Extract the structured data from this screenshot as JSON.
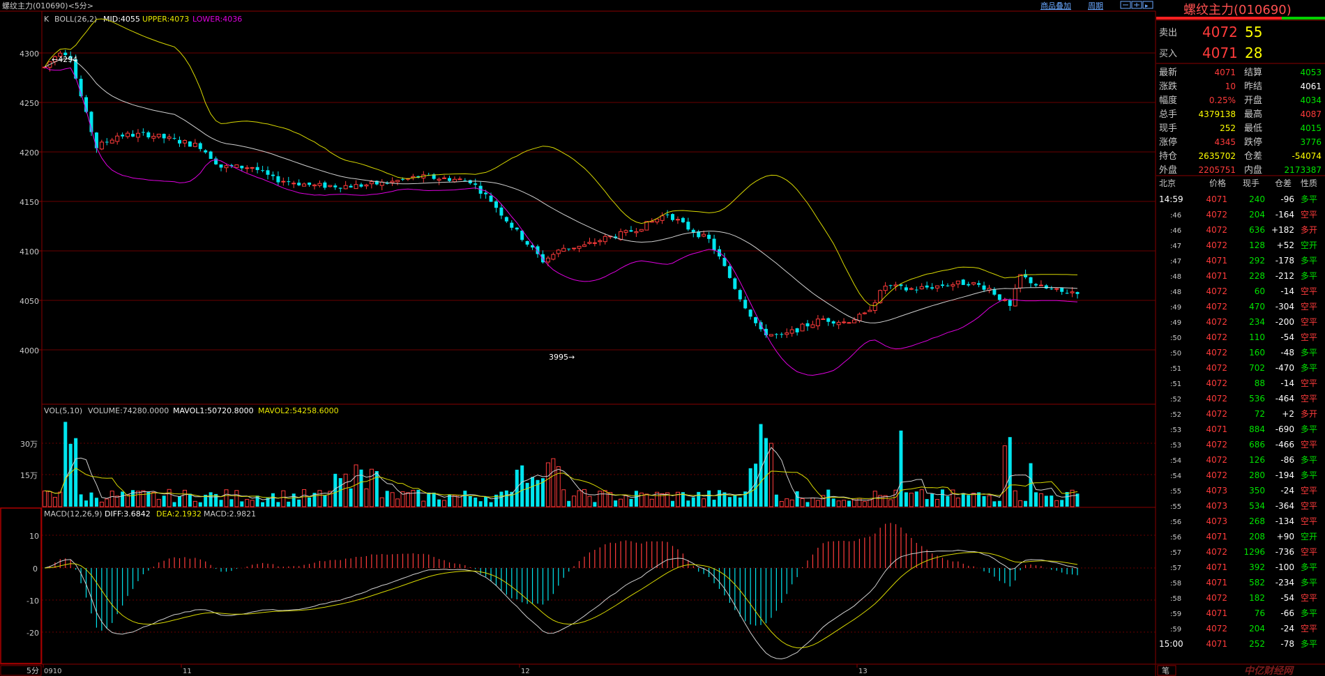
{
  "header": {
    "title": "螺纹主力(010690)<5分>",
    "btn_overlay": "商品叠加",
    "btn_period": "周期"
  },
  "colors": {
    "up": "#ff3b3b",
    "down": "#00e5ee",
    "upper": "#d8d800",
    "mid": "#d0d0d0",
    "lower": "#e000e0",
    "grid": "#6a0000",
    "yellow": "#ffff00",
    "green": "#00e400",
    "panel_border": "#8a0000"
  },
  "kline_panel": {
    "indicator_name": "K",
    "boll_name": "BOLL(26,2)",
    "mid": "MID:4055",
    "upper": "UPPER:4073",
    "lower": "LOWER:4036",
    "max_label": "4294",
    "min_label": "3995",
    "y_ticks": [
      "4300",
      "4250",
      "4200",
      "4150",
      "4100",
      "4050",
      "4000"
    ]
  },
  "vol_panel": {
    "name": "VOL(5,10)",
    "volume": "VOLUME:74280.0000",
    "mavol1": "MAVOL1:50720.8000",
    "mavol2": "MAVOL2:54258.6000",
    "y_ticks": [
      "30万",
      "15万"
    ]
  },
  "macd_panel": {
    "name": "MACD(12,26,9)",
    "diff": "DIFF:3.6842",
    "dea": "DEA:2.1932",
    "macd": "MACD:2.9821",
    "y_ticks": [
      "10",
      "0",
      "-10",
      "-20"
    ]
  },
  "x_axis": {
    "period_label": "5分",
    "labels": [
      "0910",
      "11",
      "12",
      "13"
    ]
  },
  "chart_data": {
    "type": "candlestick",
    "title": "螺纹主力(010690)<5分>",
    "kline": {
      "ylim": [
        3960,
        4330
      ],
      "high": 4294,
      "low": 3995
    },
    "boll": {
      "period": "26,2",
      "mid": 4055,
      "upper": 4073,
      "lower": 4036
    },
    "vol": {
      "volume": 74280.0,
      "mavol1": 50720.8,
      "mavol2": 54258.6
    },
    "macd": {
      "diff": 3.6842,
      "dea": 2.1932,
      "macd": 2.9821
    }
  },
  "quote": {
    "title": "螺纹主力(010690)",
    "sell_label": "卖出",
    "sell_price": "4072",
    "sell_vol": "55",
    "buy_label": "买入",
    "buy_price": "4071",
    "buy_vol": "28",
    "rows": [
      {
        "l1": "最新",
        "v1": "4071",
        "c1": "#ff3b3b",
        "l2": "结算",
        "v2": "4053",
        "c2": "#00e400"
      },
      {
        "l1": "涨跌",
        "v1": "10",
        "c1": "#ff3b3b",
        "l2": "昨结",
        "v2": "4061",
        "c2": "#ffffff"
      },
      {
        "l1": "幅度",
        "v1": "0.25%",
        "c1": "#ff3b3b",
        "l2": "开盘",
        "v2": "4034",
        "c2": "#00e400"
      },
      {
        "l1": "总手",
        "v1": "4379138",
        "c1": "#ffff00",
        "l2": "最高",
        "v2": "4087",
        "c2": "#ff3b3b"
      },
      {
        "l1": "现手",
        "v1": "252",
        "c1": "#ffff00",
        "l2": "最低",
        "v2": "4015",
        "c2": "#00e400"
      },
      {
        "l1": "涨停",
        "v1": "4345",
        "c1": "#ff3b3b",
        "l2": "跌停",
        "v2": "3776",
        "c2": "#00e400"
      },
      {
        "l1": "持仓",
        "v1": "2635702",
        "c1": "#ffff00",
        "l2": "仓差",
        "v2": "-54074",
        "c2": "#ffff00"
      },
      {
        "l1": "外盘",
        "v1": "2205751",
        "c1": "#ff3b3b",
        "l2": "内盘",
        "v2": "2173387",
        "c2": "#00e400"
      }
    ],
    "tick_header": {
      "time": "北京",
      "price": "价格",
      "vol": "现手",
      "oi": "仓差",
      "nature": "性质"
    },
    "ticks": [
      {
        "t": "14:59",
        "p": "4071",
        "v": "240",
        "o": "-96",
        "n": "多平",
        "nc": "#00e400"
      },
      {
        "t": ":46",
        "p": "4072",
        "v": "204",
        "o": "-164",
        "n": "空平",
        "nc": "#ff3b3b"
      },
      {
        "t": ":46",
        "p": "4072",
        "v": "636",
        "o": "+182",
        "n": "多开",
        "nc": "#ff3b3b"
      },
      {
        "t": ":47",
        "p": "4072",
        "v": "128",
        "o": "+52",
        "n": "空开",
        "nc": "#00e400"
      },
      {
        "t": ":47",
        "p": "4071",
        "v": "292",
        "o": "-178",
        "n": "多平",
        "nc": "#00e400"
      },
      {
        "t": ":48",
        "p": "4071",
        "v": "228",
        "o": "-212",
        "n": "多平",
        "nc": "#00e400"
      },
      {
        "t": ":48",
        "p": "4072",
        "v": "60",
        "o": "-14",
        "n": "空平",
        "nc": "#ff3b3b"
      },
      {
        "t": ":49",
        "p": "4072",
        "v": "470",
        "o": "-304",
        "n": "空平",
        "nc": "#ff3b3b"
      },
      {
        "t": ":49",
        "p": "4072",
        "v": "234",
        "o": "-200",
        "n": "空平",
        "nc": "#ff3b3b"
      },
      {
        "t": ":50",
        "p": "4072",
        "v": "110",
        "o": "-54",
        "n": "空平",
        "nc": "#ff3b3b"
      },
      {
        "t": ":50",
        "p": "4072",
        "v": "160",
        "o": "-48",
        "n": "多平",
        "nc": "#00e400"
      },
      {
        "t": ":51",
        "p": "4072",
        "v": "702",
        "o": "-470",
        "n": "多平",
        "nc": "#00e400"
      },
      {
        "t": ":51",
        "p": "4072",
        "v": "88",
        "o": "-14",
        "n": "空平",
        "nc": "#ff3b3b"
      },
      {
        "t": ":52",
        "p": "4072",
        "v": "536",
        "o": "-464",
        "n": "空平",
        "nc": "#ff3b3b"
      },
      {
        "t": ":52",
        "p": "4072",
        "v": "72",
        "o": "+2",
        "n": "多开",
        "nc": "#ff3b3b"
      },
      {
        "t": ":53",
        "p": "4071",
        "v": "884",
        "o": "-690",
        "n": "多平",
        "nc": "#00e400"
      },
      {
        "t": ":53",
        "p": "4072",
        "v": "686",
        "o": "-466",
        "n": "空平",
        "nc": "#ff3b3b"
      },
      {
        "t": ":54",
        "p": "4072",
        "v": "126",
        "o": "-86",
        "n": "多平",
        "nc": "#00e400"
      },
      {
        "t": ":54",
        "p": "4072",
        "v": "280",
        "o": "-194",
        "n": "多平",
        "nc": "#00e400"
      },
      {
        "t": ":55",
        "p": "4073",
        "v": "350",
        "o": "-24",
        "n": "空平",
        "nc": "#ff3b3b"
      },
      {
        "t": ":55",
        "p": "4073",
        "v": "534",
        "o": "-364",
        "n": "空平",
        "nc": "#ff3b3b"
      },
      {
        "t": ":56",
        "p": "4073",
        "v": "268",
        "o": "-134",
        "n": "空平",
        "nc": "#ff3b3b"
      },
      {
        "t": ":56",
        "p": "4071",
        "v": "208",
        "o": "+90",
        "n": "空开",
        "nc": "#00e400"
      },
      {
        "t": ":57",
        "p": "4072",
        "v": "1296",
        "o": "-736",
        "n": "空平",
        "nc": "#ff3b3b"
      },
      {
        "t": ":57",
        "p": "4071",
        "v": "392",
        "o": "-100",
        "n": "多平",
        "nc": "#00e400"
      },
      {
        "t": ":58",
        "p": "4071",
        "v": "582",
        "o": "-234",
        "n": "多平",
        "nc": "#00e400"
      },
      {
        "t": ":58",
        "p": "4072",
        "v": "182",
        "o": "-54",
        "n": "空平",
        "nc": "#ff3b3b"
      },
      {
        "t": ":59",
        "p": "4071",
        "v": "76",
        "o": "-66",
        "n": "多平",
        "nc": "#00e400"
      },
      {
        "t": ":59",
        "p": "4072",
        "v": "204",
        "o": "-24",
        "n": "空平",
        "nc": "#ff3b3b"
      },
      {
        "t": "15:00",
        "p": "4071",
        "v": "252",
        "o": "-78",
        "n": "多平",
        "nc": "#00e400"
      }
    ],
    "footer_tab": "笔",
    "watermark": "中亿财经网"
  }
}
